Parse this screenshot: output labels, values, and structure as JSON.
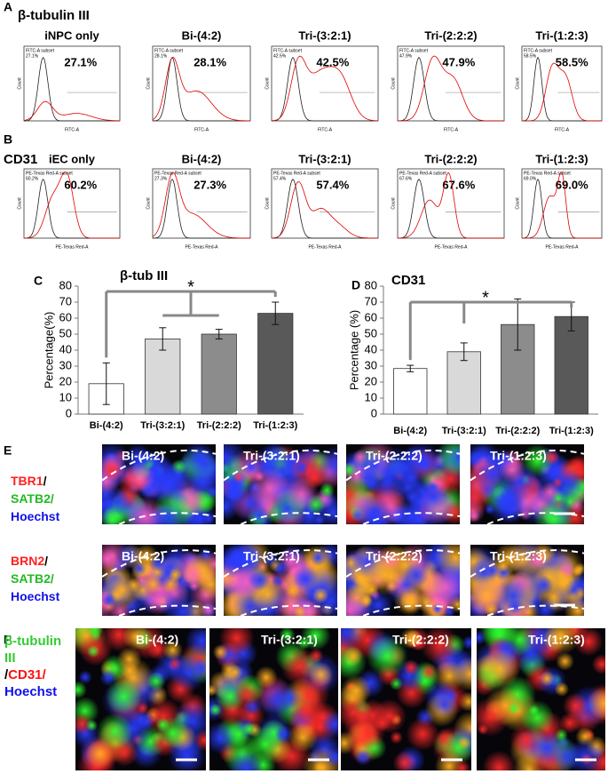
{
  "panel_labels": [
    "A",
    "B",
    "C",
    "D",
    "E",
    "F"
  ],
  "flow": [
    {
      "marker": "β-tubulin III",
      "subset": "FITC-A subset",
      "x_label": "FITC-A",
      "y_label": "Count",
      "samples": [
        {
          "name": "iNPC only",
          "percent": "27.1%"
        },
        {
          "name": "Bi-(4:2)",
          "percent": "28.1%"
        },
        {
          "name": "Tri-(3:2:1)",
          "percent": "42.5%"
        },
        {
          "name": "Tri-(2:2:2)",
          "percent": "47.9%"
        },
        {
          "name": "Tri-(1:2:3)",
          "percent": "58.5%"
        }
      ]
    },
    {
      "marker": "CD31",
      "subset": "PE-Texas Red-A subset",
      "x_label": "PE-Texas Red-A",
      "y_label": "Count",
      "samples": [
        {
          "name": "iEC only",
          "percent": "60.2%"
        },
        {
          "name": "Bi-(4:2)",
          "percent": "27.3%"
        },
        {
          "name": "Tri-(3:2:1)",
          "percent": "57.4%"
        },
        {
          "name": "Tri-(2:2:2)",
          "percent": "67.6%"
        },
        {
          "name": "Tri-(1:2:3)",
          "percent": "69.0%"
        }
      ]
    }
  ],
  "chart_data": [
    {
      "type": "bar",
      "title": "β-tub III",
      "y_label": "Percentage(%)",
      "categories": [
        "Bi-(4:2)",
        "Tri-(3:2:1)",
        "Tri-(2:2:2)",
        "Tri-(1:2:3)"
      ],
      "values": [
        19,
        47,
        50,
        63
      ],
      "errors": [
        13,
        7,
        3,
        7
      ],
      "colors": [
        "#ffffff",
        "#d9d9d9",
        "#8c8c8c",
        "#595959"
      ],
      "ylim": [
        0,
        80
      ],
      "yticks": [
        0,
        10,
        20,
        30,
        40,
        50,
        60,
        70,
        80
      ],
      "annotation": "*"
    },
    {
      "type": "bar",
      "title": "CD31",
      "y_label": "Percentage (%)",
      "categories": [
        "Bi-(4:2)",
        "Tri-(3:2:1)",
        "Tri-(2:2:2)",
        "Tri-(1:2:3)"
      ],
      "values": [
        28.5,
        39,
        56,
        61
      ],
      "errors": [
        2,
        5.5,
        16,
        9
      ],
      "colors": [
        "#ffffff",
        "#d9d9d9",
        "#8c8c8c",
        "#595959"
      ],
      "ylim": [
        0,
        80
      ],
      "yticks": [
        0,
        10,
        20,
        30,
        40,
        50,
        60,
        70,
        80
      ],
      "annotation": "*"
    }
  ],
  "staining_e": {
    "rows": [
      {
        "lines": [
          [
            {
              "text": "TBR1",
              "color": "#ff2020"
            },
            {
              "text": "/",
              "color": "#000000"
            }
          ],
          [
            {
              "text": "SATB2/",
              "color": "#22bb22"
            }
          ],
          [
            {
              "text": "Hoechst",
              "color": "#1010ee"
            }
          ]
        ]
      },
      {
        "lines": [
          [
            {
              "text": "BRN2",
              "color": "#ff2020"
            },
            {
              "text": "/",
              "color": "#000000"
            }
          ],
          [
            {
              "text": "SATB2/",
              "color": "#22bb22"
            }
          ],
          [
            {
              "text": "Hoechst",
              "color": "#1010ee"
            }
          ]
        ]
      }
    ],
    "conditions": [
      "Bi-(4:2)",
      "Tri-(3:2:1)",
      "Tri-(2:2:2)",
      "Tri-(1:2:3)"
    ]
  },
  "staining_f": {
    "lines": [
      [
        {
          "text": "β-tubulin",
          "color": "#33cc33"
        }
      ],
      [
        {
          "text": "III",
          "color": "#33cc33"
        }
      ],
      [
        {
          "text": "/",
          "color": "#000000"
        },
        {
          "text": "CD31/",
          "color": "#ff1010"
        }
      ],
      [
        {
          "text": "Hoechst",
          "color": "#1010ee"
        }
      ]
    ],
    "conditions": [
      "Bi-(4:2)",
      "Tri-(3:2:1)",
      "Tri-(2:2:2)",
      "Tri-(1:2:3)"
    ]
  }
}
